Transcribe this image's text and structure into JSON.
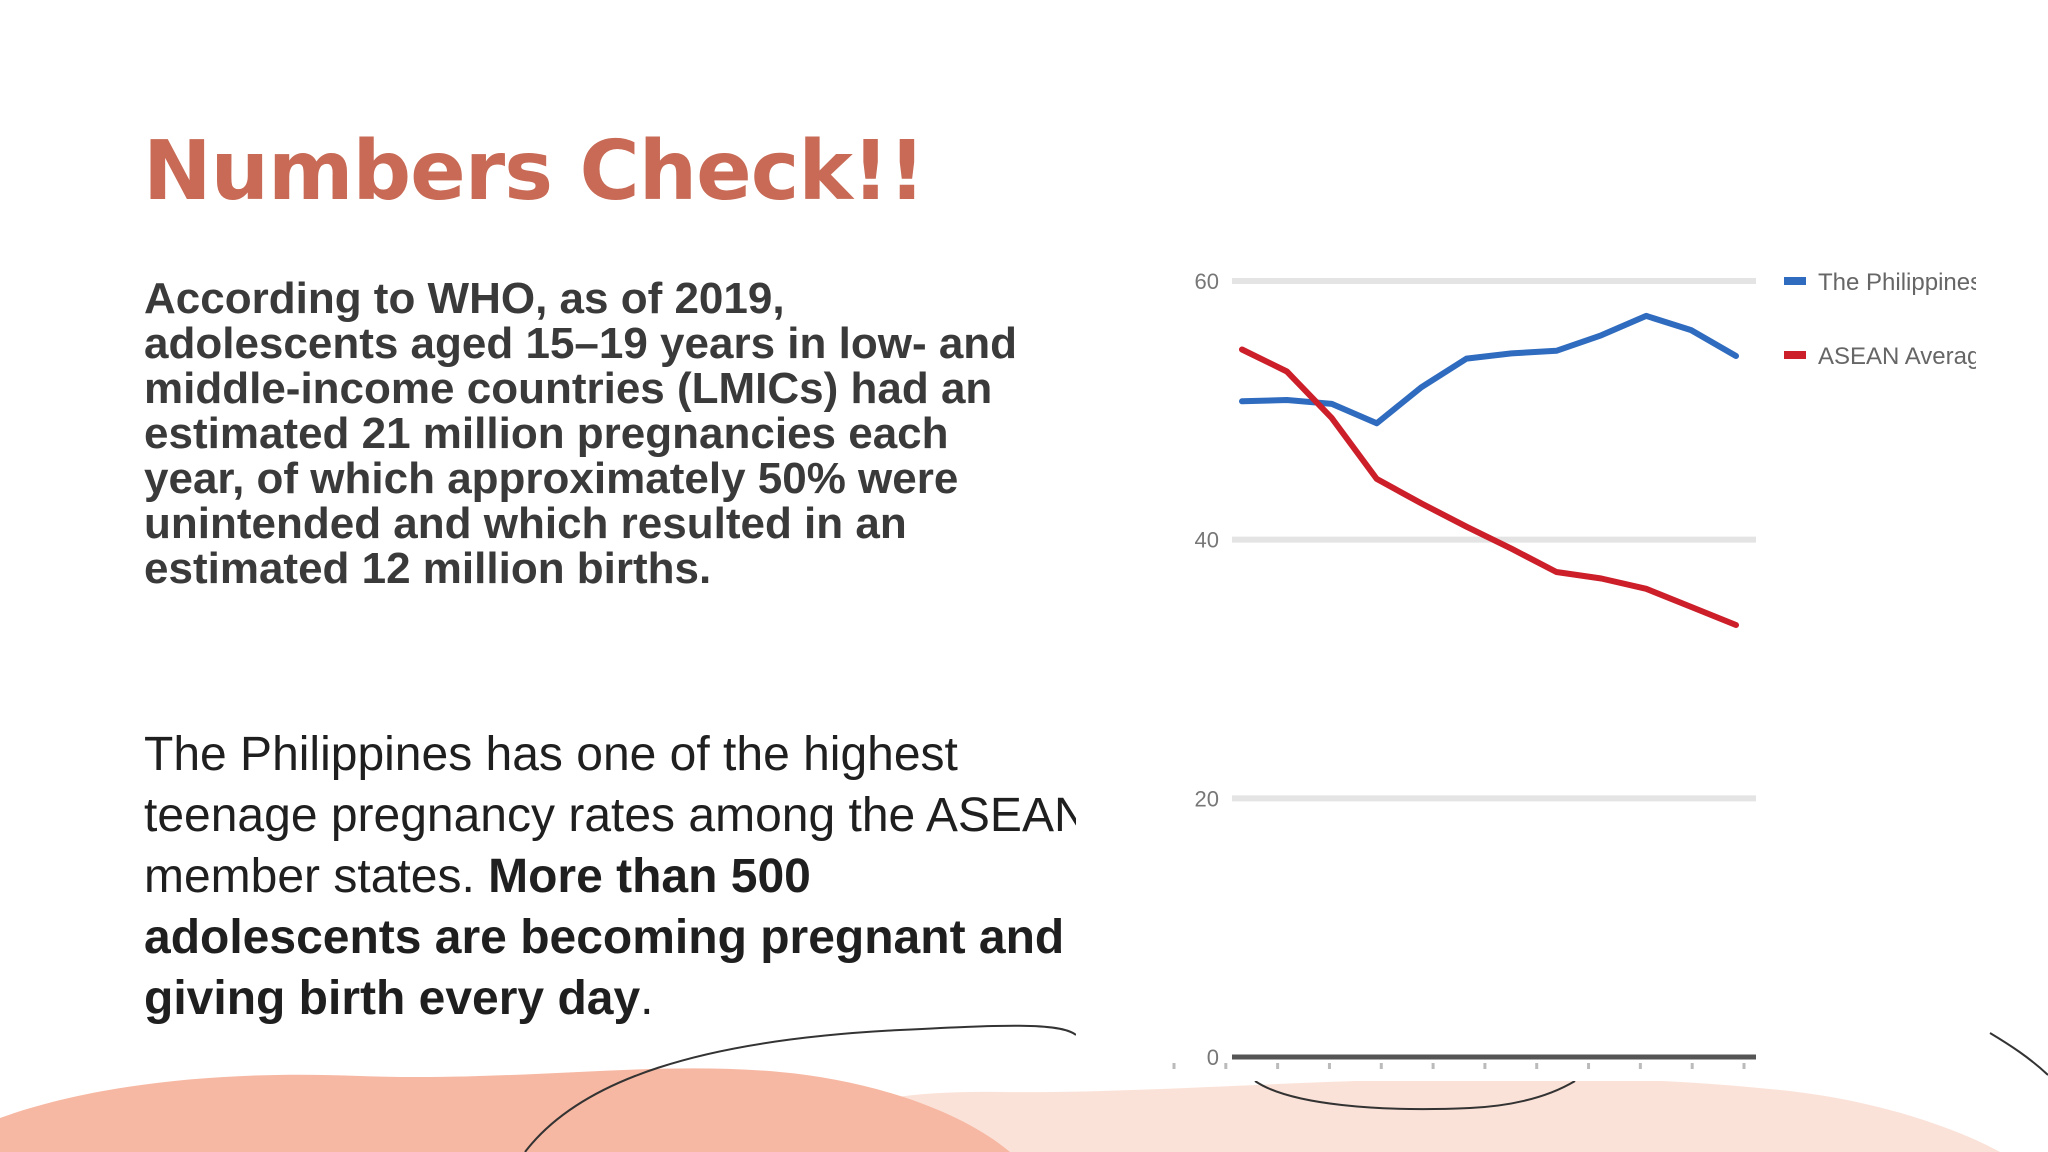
{
  "slide": {
    "title": "Numbers Check!!",
    "paragraph1": "According to WHO, as of 2019, adolescents aged 15–19 years in low- and middle-income countries (LMICs) had an estimated 21 million pregnancies each year, of which approximately 50% were unintended and which resulted in an estimated 12 million births.",
    "paragraph2_plain": "The Philippines has one of the highest teenage pregnancy rates among the ASEAN member states. ",
    "paragraph2_bold": "More than 500 adolescents are becoming pregnant and giving birth every day",
    "paragraph2_end": ".",
    "colors": {
      "title": "#c86a55",
      "decor_peach": "#f7b8a3",
      "decor_light": "#fbe2d8"
    }
  },
  "chart_data": {
    "type": "line",
    "title": "",
    "xlabel": "",
    "ylabel": "",
    "ylim": [
      0,
      60
    ],
    "yticks": [
      0,
      20,
      40,
      60
    ],
    "grid": true,
    "legend_position": "top-right",
    "x": [
      1,
      2,
      3,
      4,
      5,
      6,
      7,
      8,
      9,
      10,
      11,
      12
    ],
    "series": [
      {
        "name": "The Philippines",
        "color": "#2f6bbf",
        "values": [
          50.7,
          50.8,
          50.5,
          49.0,
          51.8,
          54.0,
          54.4,
          54.6,
          55.8,
          57.3,
          56.2,
          54.2
        ]
      },
      {
        "name": "ASEAN Average",
        "color": "#cc1f2a",
        "values": [
          54.7,
          53.0,
          49.4,
          44.7,
          42.8,
          41.0,
          39.3,
          37.5,
          37.0,
          36.2,
          34.8,
          33.4
        ]
      }
    ]
  }
}
